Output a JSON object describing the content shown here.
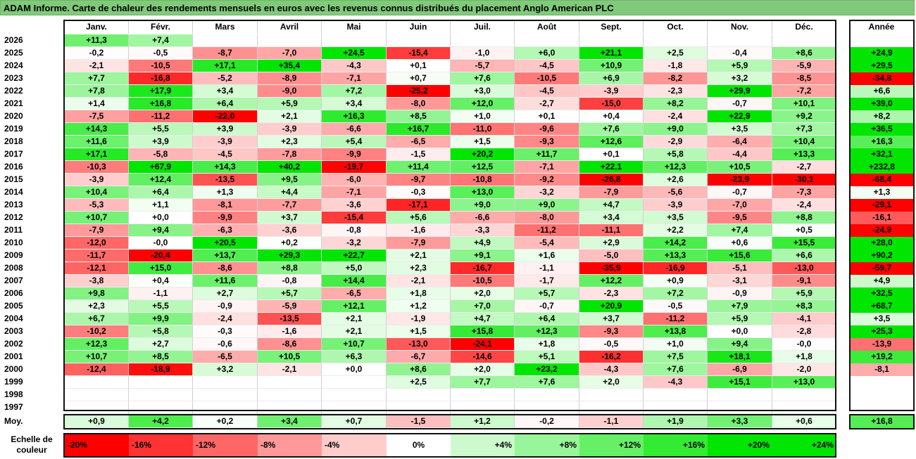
{
  "title": "ADAM Informe. Carte de chaleur des rendements mensuels en euros avec les revenus connus distribués du placement Anglo American PLC",
  "chart_data": {
    "type": "heatmap",
    "months": [
      "Janv.",
      "Févr.",
      "Mars",
      "Avril",
      "Mai",
      "Juin",
      "Juil.",
      "Août",
      "Sept.",
      "Oct.",
      "Nov.",
      "Déc."
    ],
    "annual_header": "Année",
    "rows": [
      {
        "year": "2026",
        "months": [
          "+11,3",
          "+7,4",
          "",
          "",
          "",
          "",
          "",
          "",
          "",
          "",
          "",
          ""
        ],
        "annual": ""
      },
      {
        "year": "2025",
        "months": [
          "-0,2",
          "-0,5",
          "-8,7",
          "-7,0",
          "+24,5",
          "-15,4",
          "-1,0",
          "+6,0",
          "+21,1",
          "+2,5",
          "-0,4",
          "+8,6"
        ],
        "annual": "+24,9"
      },
      {
        "year": "2024",
        "months": [
          "-2,1",
          "-10,5",
          "+17,1",
          "+35,4",
          "-4,3",
          "+0,1",
          "-5,7",
          "-4,5",
          "+10,9",
          "-1,8",
          "+5,9",
          "-5,9"
        ],
        "annual": "+29,5"
      },
      {
        "year": "2023",
        "months": [
          "+7,7",
          "-16,8",
          "-5,2",
          "-8,9",
          "-7,1",
          "+0,7",
          "+7,6",
          "-10,5",
          "+6,9",
          "-8,2",
          "+3,2",
          "-8,5"
        ],
        "annual": "-34,8"
      },
      {
        "year": "2022",
        "months": [
          "+7,8",
          "+17,9",
          "+3,4",
          "-9,0",
          "+7,2",
          "-25,2",
          "+3,0",
          "-4,5",
          "-3,9",
          "-2,3",
          "+29,9",
          "-7,2"
        ],
        "annual": "+6,6"
      },
      {
        "year": "2021",
        "months": [
          "+1,4",
          "+16,8",
          "+6,4",
          "+5,9",
          "+3,4",
          "-8,0",
          "+12,0",
          "-2,7",
          "-15,0",
          "+8,2",
          "-0,7",
          "+10,1"
        ],
        "annual": "+39,0"
      },
      {
        "year": "2020",
        "months": [
          "-7,5",
          "-11,2",
          "-22,0",
          "+2,1",
          "+16,3",
          "+8,5",
          "+1,0",
          "+0,1",
          "+0,4",
          "-2,4",
          "+22,9",
          "+9,2"
        ],
        "annual": "+8,2"
      },
      {
        "year": "2019",
        "months": [
          "+14,3",
          "+5,5",
          "+3,9",
          "-3,9",
          "-6,6",
          "+16,7",
          "-11,0",
          "-9,6",
          "+7,6",
          "+9,0",
          "+3,5",
          "+7,3"
        ],
        "annual": "+36,5"
      },
      {
        "year": "2018",
        "months": [
          "+11,6",
          "+3,9",
          "-3,9",
          "+2,3",
          "+5,4",
          "-6,5",
          "+1,5",
          "-9,3",
          "+12,6",
          "-2,9",
          "-6,4",
          "+10,4"
        ],
        "annual": "+16,3"
      },
      {
        "year": "2017",
        "months": [
          "+17,1",
          "-5,8",
          "-4,5",
          "-7,8",
          "-9,9",
          "-1,5",
          "+20,2",
          "+11,7",
          "+0,1",
          "+5,8",
          "-4,4",
          "+13,3"
        ],
        "annual": "+32,1"
      },
      {
        "year": "2016",
        "months": [
          "-10,3",
          "+67,9",
          "+14,3",
          "+40,2",
          "-19,7",
          "+11,4",
          "+12,5",
          "-7,1",
          "+22,1",
          "+12,3",
          "+10,5",
          "-2,7"
        ],
        "annual": "+232,8"
      },
      {
        "year": "2015",
        "months": [
          "-3,9",
          "+12,4",
          "-13,5",
          "+9,5",
          "-6,0",
          "-9,7",
          "-10,8",
          "-9,2",
          "-26,8",
          "+2,6",
          "-23,9",
          "-30,1"
        ],
        "annual": "-68,4"
      },
      {
        "year": "2014",
        "months": [
          "+10,4",
          "+6,4",
          "+1,3",
          "+4,4",
          "-7,1",
          "-0,3",
          "+13,0",
          "-3,2",
          "-7,9",
          "-5,6",
          "-0,7",
          "-7,3"
        ],
        "annual": "+1,3"
      },
      {
        "year": "2013",
        "months": [
          "-5,3",
          "+1,1",
          "-8,1",
          "-7,7",
          "-3,6",
          "-17,1",
          "+9,0",
          "+9,0",
          "+4,7",
          "-3,9",
          "-7,0",
          "-2,4"
        ],
        "annual": "-29,1"
      },
      {
        "year": "2012",
        "months": [
          "+10,7",
          "+0,0",
          "-9,9",
          "+3,7",
          "-15,4",
          "+5,6",
          "-6,6",
          "-8,0",
          "+3,4",
          "+3,5",
          "-9,5",
          "+8,8"
        ],
        "annual": "-16,1"
      },
      {
        "year": "2011",
        "months": [
          "-7,9",
          "+9,4",
          "-6,3",
          "-3,6",
          "-0,8",
          "-1,6",
          "-3,3",
          "-11,2",
          "-11,1",
          "+2,2",
          "+7,4",
          "+0,5"
        ],
        "annual": "-24,9"
      },
      {
        "year": "2010",
        "months": [
          "-12,0",
          "-0,0",
          "+20,5",
          "+0,2",
          "-3,2",
          "-7,9",
          "+4,9",
          "-5,4",
          "+2,9",
          "+14,2",
          "+0,6",
          "+15,5"
        ],
        "annual": "+28,0"
      },
      {
        "year": "2009",
        "months": [
          "-11,7",
          "-20,4",
          "+13,7",
          "+29,3",
          "+22,7",
          "+2,1",
          "+9,1",
          "+1,6",
          "-5,0",
          "+13,3",
          "+15,6",
          "+6,6"
        ],
        "annual": "+90,2"
      },
      {
        "year": "2008",
        "months": [
          "-12,1",
          "+15,0",
          "-8,6",
          "+8,8",
          "+5,0",
          "+2,3",
          "-16,7",
          "-1,1",
          "-35,9",
          "-16,9",
          "-5,1",
          "-13,0"
        ],
        "annual": "-59,7"
      },
      {
        "year": "2007",
        "months": [
          "-3,8",
          "+0,4",
          "+11,6",
          "-0,8",
          "+14,4",
          "-2,1",
          "-10,5",
          "-1,7",
          "+12,2",
          "+0,9",
          "-3,1",
          "-9,1"
        ],
        "annual": "+4,9"
      },
      {
        "year": "2006",
        "months": [
          "+9,8",
          "-1,1",
          "+2,7",
          "+5,7",
          "-6,5",
          "+1,8",
          "+2,0",
          "+5,7",
          "-2,3",
          "+7,2",
          "-0,9",
          "+5,9"
        ],
        "annual": "+32,5"
      },
      {
        "year": "2005",
        "months": [
          "+2,3",
          "+5,5",
          "-0,9",
          "-5,9",
          "+12,1",
          "+1,2",
          "+7,0",
          "-0,7",
          "+20,9",
          "-0,5",
          "+7,9",
          "+8,3"
        ],
        "annual": "+68,7"
      },
      {
        "year": "2004",
        "months": [
          "+6,7",
          "+9,9",
          "-2,4",
          "-13,5",
          "+2,1",
          "-1,9",
          "+4,7",
          "+6,4",
          "+3,7",
          "-11,2",
          "+5,9",
          "-4,1"
        ],
        "annual": "+3,5"
      },
      {
        "year": "2003",
        "months": [
          "-10,2",
          "+5,8",
          "-0,3",
          "-1,6",
          "+2,1",
          "+1,5",
          "+15,8",
          "+12,3",
          "-9,3",
          "+13,8",
          "+0,0",
          "-2,8"
        ],
        "annual": "+25,3"
      },
      {
        "year": "2002",
        "months": [
          "+12,3",
          "+2,7",
          "-0,6",
          "-8,6",
          "+10,7",
          "-13,0",
          "-24,1",
          "+1,8",
          "-0,5",
          "+1,0",
          "+9,4",
          "-0,0"
        ],
        "annual": "-13,9"
      },
      {
        "year": "2001",
        "months": [
          "+10,7",
          "+8,5",
          "-6,5",
          "+10,5",
          "+6,3",
          "-6,7",
          "-14,6",
          "+5,1",
          "-16,2",
          "+7,5",
          "+18,1",
          "+1,8"
        ],
        "annual": "+19,2"
      },
      {
        "year": "2000",
        "months": [
          "-12,4",
          "-18,9",
          "+3,2",
          "-2,1",
          "+0,0",
          "+8,6",
          "+2,0",
          "+23,2",
          "-4,3",
          "+7,6",
          "-6,9",
          "-2,0"
        ],
        "annual": "-8,1"
      },
      {
        "year": "1999",
        "months": [
          "",
          "",
          "",
          "",
          "",
          "+2,5",
          "+7,7",
          "+7,6",
          "+2,0",
          "-4,3",
          "+15,1",
          "+13,0"
        ],
        "annual": ""
      },
      {
        "year": "1998",
        "months": [
          "",
          "",
          "",
          "",
          "",
          "",
          "",
          "",
          "",
          "",
          "",
          ""
        ],
        "annual": ""
      },
      {
        "year": "1997",
        "months": [
          "",
          "",
          "",
          "",
          "",
          "",
          "",
          "",
          "",
          "",
          "",
          ""
        ],
        "annual": ""
      }
    ],
    "average": {
      "label": "Moy.",
      "months": [
        "+0,9",
        "+4,2",
        "+0,2",
        "+3,4",
        "+0,7",
        "-1,5",
        "+1,2",
        "-0,2",
        "-1,1",
        "+1,9",
        "+3,3",
        "+0,6"
      ],
      "annual": "+16,8"
    },
    "color_scale": {
      "label": "Echelle de couleur",
      "stops": [
        "-20%",
        "-16%",
        "-12%",
        "-8%",
        "-4%",
        "0%",
        "+4%",
        "+8%",
        "+12%",
        "+16%",
        "+20%",
        "+24%"
      ]
    },
    "colors": {
      "negative": "#ff0000",
      "positive": "#00e600",
      "neutral": "#ffffff",
      "title_bg": "#81c97b"
    }
  }
}
